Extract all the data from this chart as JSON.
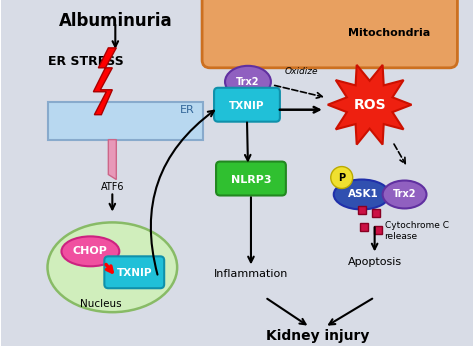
{
  "bg_color": "#d8dce6",
  "mito_box_color": "#e8a060",
  "er_box_color": "#b8d8f0",
  "nucleus_color": "#d0eebc",
  "chop_color": "#f050a0",
  "txnip_color": "#20c0d8",
  "nlrp3_color": "#30c030",
  "trx2_color": "#9060c0",
  "ask1_color": "#3050b0",
  "p_color": "#f0e030",
  "ros_red": "#ee2010",
  "atf6_color": "#e898b8",
  "dark_red": "#cc1000",
  "title": "Albuminuria",
  "er_stress": "ER STRESS",
  "atf6": "ATF6",
  "er": "ER",
  "mitochondria": "Mitochondria",
  "trx2": "Trx2",
  "txnip": "TXNIP",
  "ros": "ROS",
  "nlrp3": "NLRP3",
  "ask1": "ASK1",
  "p": "P",
  "chop": "CHOP",
  "nucleus": "Nucleus",
  "oxidize": "Oxidize",
  "cytochrome": "Cytochrome C\nrelease",
  "inflammation": "Inflammation",
  "apoptosis": "Apoptosis",
  "kidney": "Kidney injury"
}
